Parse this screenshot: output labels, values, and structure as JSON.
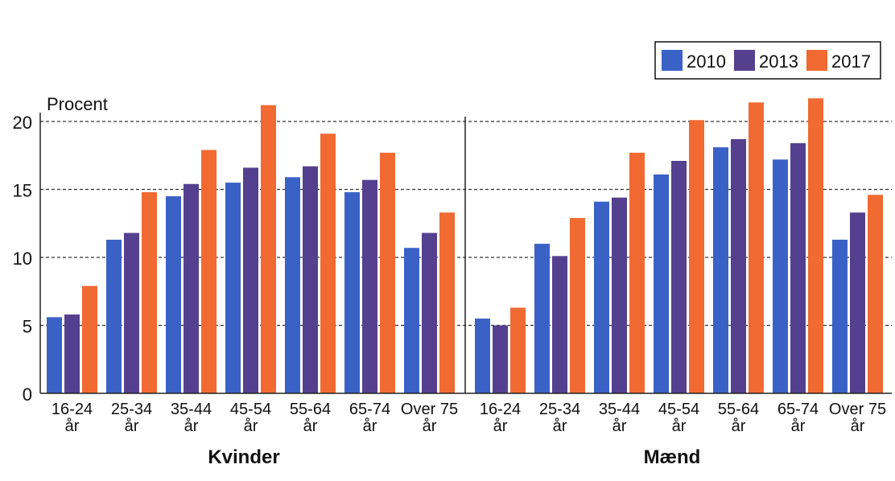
{
  "chart_data": {
    "type": "bar",
    "ylabel": "Procent",
    "ylim": [
      0,
      22
    ],
    "yticks": [
      0,
      5,
      10,
      15,
      20
    ],
    "grid": true,
    "legend_position": "top-right",
    "categories": [
      "16-24|år",
      "25-34|år",
      "35-44|år",
      "45-54|år",
      "55-64|år",
      "65-74|år",
      "Over 75|år"
    ],
    "panels": [
      {
        "label": "Kvinder",
        "series": [
          {
            "name": "2010",
            "values": [
              5.6,
              11.3,
              14.5,
              15.5,
              15.9,
              14.8,
              10.7
            ]
          },
          {
            "name": "2013",
            "values": [
              5.8,
              11.8,
              15.4,
              16.6,
              16.7,
              15.7,
              11.8
            ]
          },
          {
            "name": "2017",
            "values": [
              7.9,
              14.8,
              17.9,
              21.2,
              19.1,
              17.7,
              13.3
            ]
          }
        ]
      },
      {
        "label": "Mænd",
        "series": [
          {
            "name": "2010",
            "values": [
              5.5,
              11.0,
              14.1,
              16.1,
              18.1,
              17.2,
              11.3
            ]
          },
          {
            "name": "2013",
            "values": [
              5.0,
              10.1,
              14.4,
              17.1,
              18.7,
              18.4,
              13.3
            ]
          },
          {
            "name": "2017",
            "values": [
              6.3,
              12.9,
              17.7,
              20.1,
              21.4,
              21.7,
              14.6
            ]
          }
        ]
      }
    ],
    "legend": [
      "2010",
      "2013",
      "2017"
    ],
    "colors": [
      "#3a62c6",
      "#55408f",
      "#f06a32"
    ]
  }
}
